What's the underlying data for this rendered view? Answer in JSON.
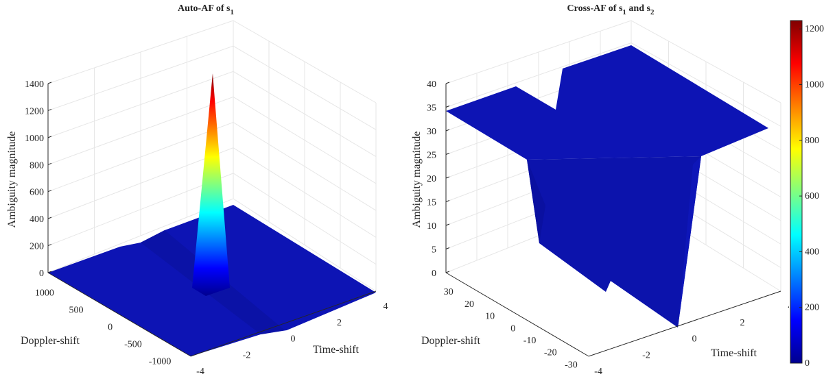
{
  "colormap": [
    "#00008f",
    "#0000ff",
    "#0080ff",
    "#00ffff",
    "#80ff80",
    "#ffff00",
    "#ff8000",
    "#ff0000",
    "#800000"
  ],
  "surface_color": "#0d14b4",
  "chart_data": [
    {
      "type": "surface",
      "title_main": "Auto-AF of s",
      "title_sub": "1",
      "title_rest": "",
      "title_sub2": "",
      "xlabel": "Time-shift",
      "ylabel": "Doppler-shift",
      "zlabel": "Ambiguity magnitude",
      "xticks": [
        "-4",
        "-2",
        "0",
        "2",
        "4"
      ],
      "yticks": [
        "1000",
        "500",
        "0",
        "-500",
        "-1000"
      ],
      "zticks": [
        "0",
        "200",
        "400",
        "600",
        "800",
        "1000",
        "1200",
        "1400"
      ],
      "xlim": [
        -4,
        4
      ],
      "ylim": [
        -1000,
        1000
      ],
      "zlim": [
        0,
        1400
      ],
      "grid": true,
      "peak": {
        "x": 0,
        "y": 0,
        "z": 1200
      },
      "floor_value": 0
    },
    {
      "type": "surface",
      "title_main": "Cross-AF of s",
      "title_sub": "1",
      "title_rest": " and s",
      "title_sub2": "2",
      "xlabel": "Time-shift",
      "ylabel": "Doppler-shift",
      "zlabel": "Ambiguity magnitude",
      "xticks": [
        "-4",
        "-2",
        "0",
        "2",
        "4"
      ],
      "yticks": [
        "30",
        "20",
        "10",
        "0",
        "-10",
        "-20",
        "-30"
      ],
      "zticks": [
        "0",
        "5",
        "10",
        "15",
        "20",
        "25",
        "30",
        "35",
        "40"
      ],
      "xlim": [
        -4,
        4
      ],
      "ylim": [
        -30,
        30
      ],
      "zlim": [
        0,
        40
      ],
      "grid": true,
      "plateau_value": 35,
      "trough_value": 0
    }
  ],
  "colorbar": {
    "ticks": [
      "0",
      "200",
      "400",
      "600",
      "800",
      "1000",
      "1200"
    ],
    "range": [
      0,
      1230
    ]
  }
}
